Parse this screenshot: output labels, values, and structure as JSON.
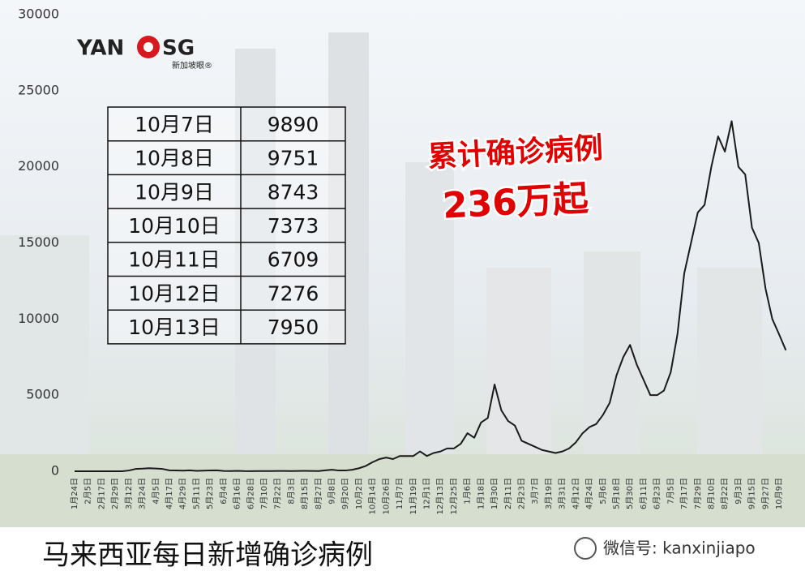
{
  "logo": {
    "left": "YAN",
    "right": "SG",
    "sub": "新加坡眼®"
  },
  "table": {
    "rows": [
      [
        "10月7日",
        9890
      ],
      [
        "10月8日",
        9751
      ],
      [
        "10月9日",
        8743
      ],
      [
        "10月10日",
        7373
      ],
      [
        "10月11日",
        6709
      ],
      [
        "10月12日",
        7276
      ],
      [
        "10月13日",
        7950
      ]
    ]
  },
  "annotation": {
    "line1": "累计确诊病例",
    "line2": "236万起"
  },
  "caption": "马来西亚每日新增确诊病例",
  "watermark": "微信号: kanxinjiapo",
  "chart_data": {
    "type": "line",
    "color": "#1a1a1a",
    "grid": false,
    "ylim": [
      0,
      30000
    ],
    "yticks": [
      0,
      5000,
      10000,
      15000,
      20000,
      25000,
      30000
    ],
    "categories": [
      "1月24日",
      null,
      "2月5日",
      null,
      "2月17日",
      null,
      "2月29日",
      null,
      "3月12日",
      null,
      "3月24日",
      null,
      "4月5日",
      null,
      "4月17日",
      null,
      "4月29日",
      null,
      "5月11日",
      null,
      "5月23日",
      null,
      "6月4日",
      null,
      "6月16日",
      null,
      "6月28日",
      null,
      "7月10日",
      null,
      "7月22日",
      null,
      "8月3日",
      null,
      "8月15日",
      null,
      "8月27日",
      null,
      "9月8日",
      null,
      "9月20日",
      null,
      "10月2日",
      null,
      "10月14日",
      null,
      "10月26日",
      null,
      "11月7日",
      null,
      "11月19日",
      null,
      "12月1日",
      null,
      "12月13日",
      null,
      "12月25日",
      null,
      "1月6日",
      null,
      "1月18日",
      null,
      "1月30日",
      null,
      "2月11日",
      null,
      "2月23日",
      null,
      "3月7日",
      null,
      "3月19日",
      null,
      "3月31日",
      null,
      "4月12日",
      null,
      "4月24日",
      null,
      "5月6日",
      null,
      "5月18日",
      null,
      "5月30日",
      null,
      "6月11日",
      null,
      "6月23日",
      null,
      "7月5日",
      null,
      "7月17日",
      null,
      "7月29日",
      null,
      "8月10日",
      null,
      "8月22日",
      null,
      "9月3日",
      null,
      "9月15日",
      null,
      "9月27日",
      null,
      "10月9日",
      null
    ],
    "values": [
      0,
      0,
      0,
      0,
      0,
      0,
      0,
      0,
      50,
      150,
      170,
      200,
      180,
      150,
      60,
      50,
      40,
      60,
      30,
      40,
      50,
      60,
      20,
      10,
      30,
      10,
      5,
      10,
      10,
      15,
      20,
      20,
      15,
      20,
      25,
      20,
      15,
      60,
      100,
      50,
      50,
      100,
      200,
      350,
      600,
      800,
      900,
      800,
      1000,
      1000,
      1000,
      1300,
      1000,
      1200,
      1300,
      1500,
      1500,
      1800,
      2500,
      2200,
      3200,
      3500,
      5700,
      4000,
      3300,
      3000,
      2000,
      1800,
      1600,
      1400,
      1300,
      1200,
      1300,
      1500,
      1900,
      2500,
      2900,
      3100,
      3700,
      4500,
      6300,
      7500,
      8300,
      7000,
      6000,
      5000,
      5000,
      5300,
      6500,
      9000,
      13000,
      15000,
      17000,
      17500,
      20000,
      22000,
      21000,
      23000,
      20000,
      19500,
      16000,
      15000,
      12000,
      10000,
      9000,
      7950
    ]
  }
}
